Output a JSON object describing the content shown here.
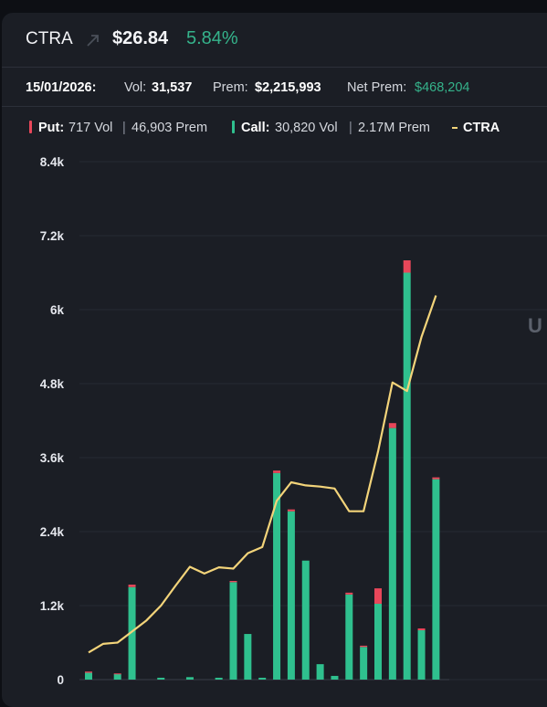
{
  "header": {
    "ticker": "CTRA",
    "arrow_icon": "arrow-up-right-icon",
    "price": "$26.84",
    "change": "5.84%"
  },
  "stats": {
    "date": "15/01/2026:",
    "vol_label": "Vol:",
    "vol_value": "31,537",
    "prem_label": "Prem:",
    "prem_value": "$2,215,993",
    "net_prem_label": "Net Prem:",
    "net_prem_value": "$468,204"
  },
  "legend": {
    "put_label": "Put:",
    "put_vol": "717 Vol",
    "put_prem": "46,903 Prem",
    "call_label": "Call:",
    "call_vol": "30,820 Vol",
    "call_prem": "2.17M Prem",
    "line_label": "CTRA"
  },
  "edge_text": "U",
  "colors": {
    "put": "#e8475a",
    "call": "#2fc08e",
    "price_line": "#f3d47a",
    "positive": "#35b38b"
  },
  "chart_data": {
    "type": "bar",
    "stacked": true,
    "y_ticks": [
      "0",
      "1.2k",
      "2.4k",
      "3.6k",
      "4.8k",
      "6k",
      "7.2k",
      "8.4k"
    ],
    "ylim": [
      0,
      8400
    ],
    "grid": true,
    "series": [
      {
        "name": "Call",
        "values": [
          110,
          0,
          90,
          1500,
          0,
          30,
          0,
          40,
          0,
          30,
          1580,
          740,
          30,
          3350,
          2730,
          1930,
          250,
          60,
          1380,
          530,
          1230,
          4080,
          6600,
          800,
          3250
        ]
      },
      {
        "name": "Put",
        "values": [
          20,
          0,
          10,
          40,
          0,
          0,
          0,
          0,
          0,
          0,
          20,
          0,
          0,
          40,
          30,
          0,
          0,
          0,
          30,
          20,
          250,
          80,
          200,
          30,
          30
        ]
      }
    ],
    "price_line": {
      "name": "CTRA",
      "values": [
        440,
        580,
        600,
        780,
        960,
        1200,
        1520,
        1830,
        1720,
        1820,
        1800,
        2050,
        2150,
        2900,
        3200,
        3150,
        3130,
        3100,
        2730,
        2730,
        3700,
        4820,
        4680,
        5560,
        6230
      ]
    }
  }
}
